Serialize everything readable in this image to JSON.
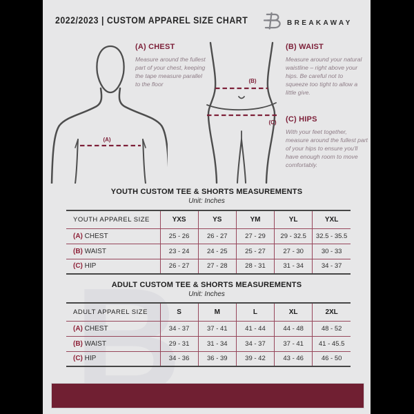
{
  "header": {
    "title": "2022/2023  |  CUSTOM APPAREL SIZE CHART",
    "brand": "BREAKAWAY"
  },
  "measurement_guide": {
    "chest": {
      "heading": "(A) CHEST",
      "marker": "(A)",
      "body": "Measure around the fullest part of your chest, keeping the tape measure parallel to the floor"
    },
    "waist": {
      "heading": "(B) WAIST",
      "marker": "(B)",
      "body": "Measure around your natural waistline – right above your hips. Be careful not to squeeze too tight to allow a little give."
    },
    "hips": {
      "heading": "(C) HIPS",
      "marker": "(C)",
      "body": "With your feet together, measure around the fullest part of your hips to ensure you'll\nhave enough room to move comfortably."
    }
  },
  "youth_table": {
    "title": "YOUTH CUSTOM TEE & SHORTS MEASUREMENTS",
    "unit": "Unit: Inches",
    "header": [
      "YOUTH APPAREL SIZE",
      "YXS",
      "YS",
      "YM",
      "YL",
      "YXL"
    ],
    "rows": [
      {
        "key": "(A)",
        "label": "CHEST",
        "values": [
          "25 - 26",
          "26 - 27",
          "27 - 29",
          "29 - 32.5",
          "32.5 - 35.5"
        ]
      },
      {
        "key": "(B)",
        "label": "WAIST",
        "values": [
          "23 - 24",
          "24 - 25",
          "25 - 27",
          "27 - 30",
          "30 - 33"
        ]
      },
      {
        "key": "(C)",
        "label": "HIP",
        "values": [
          "26 - 27",
          "27 - 28",
          "28 - 31",
          "31 - 34",
          "34 - 37"
        ]
      }
    ]
  },
  "adult_table": {
    "title": "ADULT CUSTOM TEE & SHORTS MEASUREMENTS",
    "unit": "Unit: Inches",
    "header": [
      "ADULT APPAREL SIZE",
      "S",
      "M",
      "L",
      "XL",
      "2XL"
    ],
    "rows": [
      {
        "key": "(A)",
        "label": "CHEST",
        "values": [
          "34 - 37",
          "37 - 41",
          "41 - 44",
          "44 - 48",
          "48 - 52"
        ]
      },
      {
        "key": "(B)",
        "label": "WAIST",
        "values": [
          "29 - 31",
          "31 - 34",
          "34 - 37",
          "37 - 41",
          "41 - 45.5"
        ]
      },
      {
        "key": "(C)",
        "label": "HIP",
        "values": [
          "34 - 36",
          "36 - 39",
          "39 - 42",
          "43 - 46",
          "46 - 50"
        ]
      }
    ]
  },
  "watermark_letter": "B",
  "colors": {
    "maroon_heading": "#7d2039",
    "table_line": "#96455a",
    "footer_bar": "#701f32",
    "figure_stroke": "#4d4d4d",
    "page_bg": "#e7e7e8",
    "letterbox": "#000000"
  }
}
